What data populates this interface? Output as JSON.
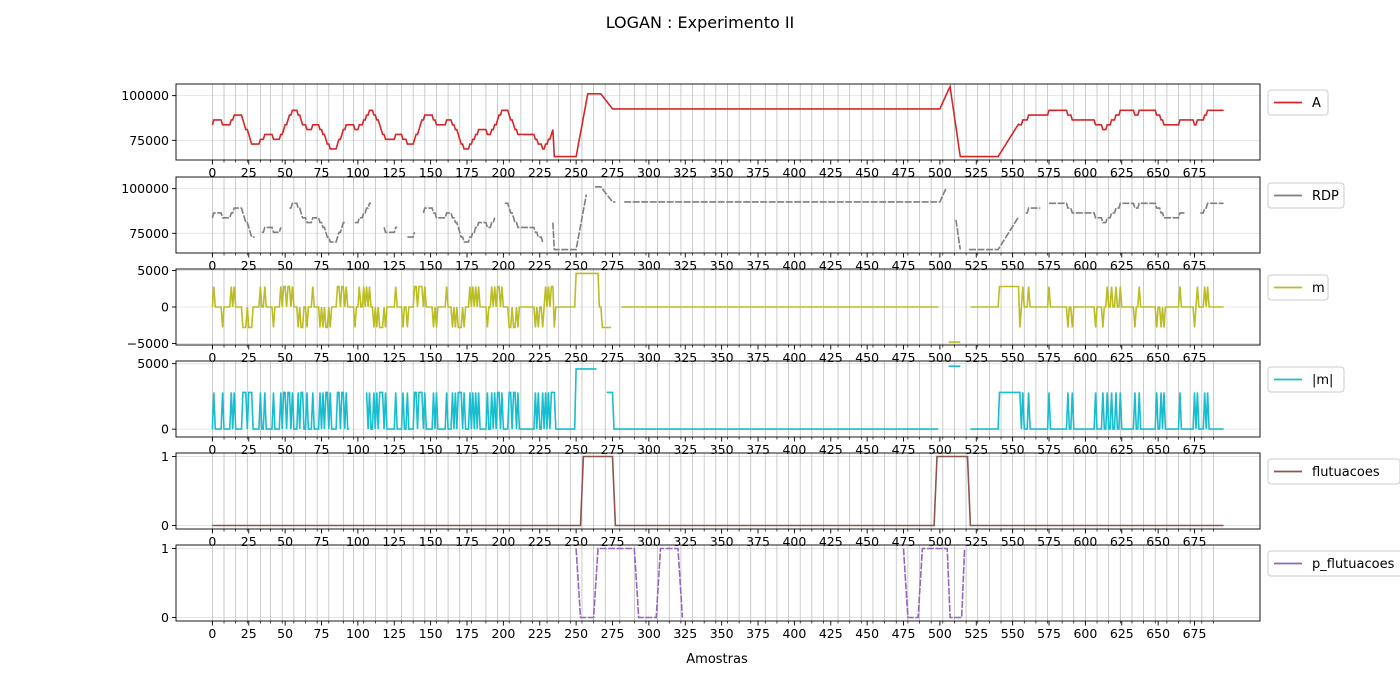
{
  "figure": {
    "title": "LOGAN : Experimento II",
    "xlabel": "Amostras"
  },
  "chart_data": [
    {
      "type": "line",
      "series": [
        {
          "name": "A",
          "color": "#d62728",
          "gaps": []
        }
      ],
      "xlim": [
        -25,
        720
      ],
      "ylim": [
        64000,
        106500
      ],
      "yticks": [
        75000,
        100000
      ],
      "ytick_labels": [
        "75000",
        "100000"
      ],
      "grid": true,
      "legend_loc": "right-outside-top",
      "trend": "oscillates 70000-93000 for samples 0-240; 66000 plateau 235-255; peak 101000 at 260-265; flat 93000 from 275 to 500; spike 105000 at 507; drop to 66000 for 515-540; oscillates 80000-93000 after 545"
    },
    {
      "type": "line",
      "series": [
        {
          "name": "RDP",
          "color": "#7f7f7f",
          "gaps": [
            [
              30,
              33
            ],
            [
              48,
              52
            ],
            [
              92,
              97
            ],
            [
              110,
              117
            ],
            [
              128,
              133
            ],
            [
              140,
              144
            ],
            [
              195,
              200
            ],
            [
              228,
              233
            ],
            [
              258,
              262
            ],
            [
              278,
              282
            ],
            [
              505,
              510
            ],
            [
              515,
              519
            ],
            [
              555,
              558
            ],
            [
              570,
              574
            ],
            [
              670,
              678
            ]
          ]
        }
      ],
      "xlim": [
        -25,
        720
      ],
      "ylim": [
        64000,
        106500
      ],
      "yticks": [
        75000,
        100000
      ],
      "ytick_labels": [
        "75000",
        "100000"
      ],
      "grid": true,
      "legend_loc": "right-outside-top",
      "note": "same shape as A, drawn with small dashed gaps"
    },
    {
      "type": "line",
      "series": [
        {
          "name": "m",
          "color": "#bcbd22",
          "gaps": [
            [
              275,
              280
            ],
            [
              500,
              505
            ],
            [
              515,
              520
            ]
          ]
        }
      ],
      "xlim": [
        -25,
        720
      ],
      "ylim": [
        -5200,
        5200
      ],
      "yticks": [
        -5000,
        0,
        5000
      ],
      "ytick_labels": [
        "−5000",
        "0",
        "5000"
      ],
      "grid": true,
      "legend_loc": "right-outside-top",
      "values_note": "slope steps in {-2800, 0, 2800}; 4600 at 250-265; 0 for 280-495; -4800 at 505-518"
    },
    {
      "type": "line",
      "series": [
        {
          "name": "|m|",
          "color": "#17becf",
          "gaps": [
            [
              95,
              105
            ],
            [
              265,
              270
            ],
            [
              500,
              505
            ],
            [
              515,
              520
            ]
          ]
        }
      ],
      "xlim": [
        -25,
        720
      ],
      "ylim": [
        -600,
        5200
      ],
      "yticks": [
        0,
        5000
      ],
      "ytick_labels": [
        "0",
        "5000"
      ],
      "grid": true,
      "legend_loc": "right-outside-top",
      "values_note": "absolute slope: 0 or 2800 oscillation 0-245; 0 from 275 to 495; 4800 at 255-262 and 510-518"
    },
    {
      "type": "line",
      "series": [
        {
          "name": "flutuacoes",
          "color": "#8c564b",
          "gaps": []
        }
      ],
      "xlim": [
        -25,
        720
      ],
      "ylim": [
        -0.05,
        1.05
      ],
      "yticks": [
        0,
        1
      ],
      "ytick_labels": [
        "0",
        "1"
      ],
      "grid": true,
      "legend_loc": "right-outside-top",
      "segments": [
        [
          0,
          0
        ],
        [
          253,
          0
        ],
        [
          255,
          1
        ],
        [
          275,
          1
        ],
        [
          277,
          0
        ],
        [
          496,
          0
        ],
        [
          498,
          1
        ],
        [
          519,
          1
        ],
        [
          521,
          0
        ],
        [
          695,
          0
        ]
      ]
    },
    {
      "type": "line",
      "series": [
        {
          "name": "p_flutuacoes",
          "color": "#9467bd",
          "gaps": [
            [
              240,
              242
            ],
            [
              455,
              460
            ],
            [
              520,
              526
            ]
          ]
        }
      ],
      "xlim": [
        -25,
        720
      ],
      "ylim": [
        -0.05,
        1.05
      ],
      "yticks": [
        0,
        1
      ],
      "ytick_labels": [
        "0",
        "1"
      ],
      "grid": true,
      "legend_loc": "right-outside-top",
      "segments": [
        [
          0,
          0
        ],
        [
          240,
          0
        ],
        [
          241,
          1
        ],
        [
          250,
          1
        ],
        [
          253,
          0
        ],
        [
          262,
          0
        ],
        [
          265,
          1
        ],
        [
          290,
          1
        ],
        [
          293,
          0
        ],
        [
          305,
          0
        ],
        [
          308,
          1
        ],
        [
          320,
          1
        ],
        [
          323,
          0
        ],
        [
          455,
          0
        ],
        [
          460,
          1
        ],
        [
          475,
          1
        ],
        [
          478,
          0
        ],
        [
          485,
          0
        ],
        [
          488,
          1
        ],
        [
          505,
          1
        ],
        [
          507,
          0
        ],
        [
          515,
          0
        ],
        [
          517,
          1
        ],
        [
          520,
          1
        ],
        [
          523,
          0
        ],
        [
          695,
          0
        ]
      ]
    }
  ],
  "xticks": [
    0,
    25,
    50,
    75,
    100,
    125,
    150,
    175,
    200,
    225,
    250,
    275,
    300,
    325,
    350,
    375,
    400,
    425,
    450,
    475,
    500,
    525,
    550,
    575,
    600,
    625,
    650,
    675
  ],
  "xtick_labels": [
    "0",
    "25",
    "50",
    "75",
    "100",
    "125",
    "150",
    "175",
    "200",
    "225",
    "250",
    "275",
    "300",
    "325",
    "350",
    "375",
    "400",
    "425",
    "450",
    "475",
    "500",
    "525",
    "550",
    "575",
    "600",
    "625",
    "650",
    "675"
  ],
  "vlines_note": "gray vertical reference lines at irregular sample positions",
  "vlines": [
    0,
    8,
    16,
    24,
    33,
    40,
    48,
    56,
    64,
    72,
    80,
    90,
    97,
    104,
    112,
    120,
    130,
    138,
    146,
    154,
    162,
    170,
    178,
    188,
    196,
    204,
    212,
    220,
    230,
    238,
    246,
    254,
    262,
    270,
    280,
    290,
    298,
    306,
    314,
    322,
    330,
    338,
    346,
    354,
    362,
    370,
    380,
    388,
    396,
    404,
    412,
    420,
    430,
    438,
    446,
    454,
    462,
    470,
    478,
    486,
    494,
    502,
    510,
    518,
    526,
    534,
    542,
    550,
    558,
    566,
    574,
    584,
    592,
    600,
    608,
    616,
    624,
    632,
    640,
    648,
    656,
    664,
    672,
    680,
    688
  ]
}
